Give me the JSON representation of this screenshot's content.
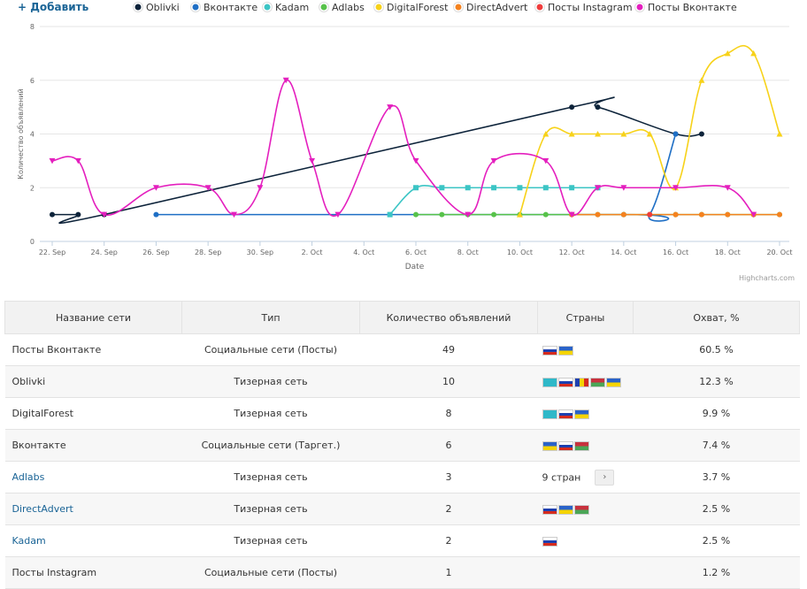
{
  "add_label": "+ Добавить",
  "credits": "Highcharts.com",
  "chart_data": {
    "type": "line",
    "xlabel": "Date",
    "ylabel": "Количество объявлений",
    "ylim": [
      0,
      8
    ],
    "yticks": [
      0,
      2,
      4,
      6,
      8
    ],
    "xlim": [
      "2014-09-22",
      "2014-10-20"
    ],
    "xticks": [
      "22. Sep",
      "24. Sep",
      "26. Sep",
      "28. Sep",
      "30. Sep",
      "2. Oct",
      "4. Oct",
      "6. Oct",
      "8. Oct",
      "10. Oct",
      "12. Oct",
      "14. Oct",
      "16. Oct",
      "18. Oct",
      "20. Oct"
    ],
    "legend_position": "top",
    "series": [
      {
        "name": "Oblivki",
        "color": "#0d233a",
        "marker": "circle",
        "points": [
          [
            "09-22",
            1
          ],
          [
            "09-23",
            1
          ],
          [
            "09-24",
            1
          ],
          [
            "10-12",
            5
          ],
          [
            "10-13",
            5
          ],
          [
            "10-16",
            4
          ],
          [
            "10-17",
            4
          ]
        ]
      },
      {
        "name": "Вконтакте",
        "color": "#1f6fc5",
        "marker": "circle",
        "points": [
          [
            "09-26",
            1
          ],
          [
            "10-14",
            1
          ],
          [
            "10-15",
            1
          ],
          [
            "10-16",
            4
          ]
        ]
      },
      {
        "name": "Kadam",
        "color": "#3cc5c5",
        "marker": "square",
        "points": [
          [
            "10-05",
            1
          ],
          [
            "10-06",
            2
          ],
          [
            "10-07",
            2
          ],
          [
            "10-08",
            2
          ],
          [
            "10-09",
            2
          ],
          [
            "10-10",
            2
          ],
          [
            "10-11",
            2
          ],
          [
            "10-12",
            2
          ],
          [
            "10-13",
            2
          ]
        ]
      },
      {
        "name": "Adlabs",
        "color": "#57c24a",
        "marker": "circle",
        "points": [
          [
            "10-06",
            1
          ],
          [
            "10-07",
            1
          ],
          [
            "10-08",
            1
          ],
          [
            "10-09",
            1
          ],
          [
            "10-10",
            1
          ],
          [
            "10-11",
            1
          ],
          [
            "10-12",
            1
          ],
          [
            "10-13",
            1
          ],
          [
            "10-14",
            1
          ],
          [
            "10-15",
            1
          ],
          [
            "10-16",
            1
          ],
          [
            "10-17",
            1
          ],
          [
            "10-18",
            1
          ],
          [
            "10-19",
            1
          ],
          [
            "10-20",
            1
          ]
        ]
      },
      {
        "name": "DigitalForest",
        "color": "#f7d21a",
        "marker": "triangle",
        "points": [
          [
            "10-10",
            1
          ],
          [
            "10-11",
            4
          ],
          [
            "10-12",
            4
          ],
          [
            "10-13",
            4
          ],
          [
            "10-14",
            4
          ],
          [
            "10-15",
            4
          ],
          [
            "10-16",
            2
          ],
          [
            "10-17",
            6
          ],
          [
            "10-18",
            7
          ],
          [
            "10-19",
            7
          ],
          [
            "10-20",
            4
          ]
        ]
      },
      {
        "name": "DirectAdvert",
        "color": "#f5821f",
        "marker": "circle",
        "points": [
          [
            "10-12",
            1
          ],
          [
            "10-13",
            1
          ],
          [
            "10-14",
            1
          ],
          [
            "10-15",
            1
          ],
          [
            "10-16",
            1
          ],
          [
            "10-17",
            1
          ],
          [
            "10-18",
            1
          ],
          [
            "10-19",
            1
          ],
          [
            "10-20",
            1
          ]
        ]
      },
      {
        "name": "Посты Instagram",
        "color": "#f03c3c",
        "marker": "circle",
        "points": [
          [
            "10-15",
            1
          ]
        ]
      },
      {
        "name": "Посты Вконтакте",
        "color": "#e41fbe",
        "marker": "triangle-down",
        "points": [
          [
            "09-22",
            3
          ],
          [
            "09-23",
            3
          ],
          [
            "09-24",
            1
          ],
          [
            "09-26",
            2
          ],
          [
            "09-28",
            2
          ],
          [
            "09-29",
            1
          ],
          [
            "09-30",
            2
          ],
          [
            "10-01",
            6
          ],
          [
            "10-02",
            3
          ],
          [
            "10-03",
            1
          ],
          [
            "10-05",
            5
          ],
          [
            "10-06",
            3
          ],
          [
            "10-08",
            1
          ],
          [
            "10-09",
            3
          ],
          [
            "10-11",
            3
          ],
          [
            "10-12",
            1
          ],
          [
            "10-13",
            2
          ],
          [
            "10-14",
            2
          ],
          [
            "10-16",
            2
          ],
          [
            "10-18",
            2
          ],
          [
            "10-19",
            1
          ]
        ]
      }
    ]
  },
  "table": {
    "headers": [
      "Название сети",
      "Тип",
      "Количество объявлений",
      "Страны",
      "Охват, %"
    ],
    "rows": [
      {
        "name": "Посты Вконтакте",
        "link": false,
        "type": "Социальные сети (Посты)",
        "count": "49",
        "flags": [
          "ru",
          "ua"
        ],
        "countries_text": "",
        "reach": "60.5 %"
      },
      {
        "name": "Oblivki",
        "link": false,
        "type": "Тизерная сеть",
        "count": "10",
        "flags": [
          "kz",
          "ru",
          "md",
          "by",
          "ua"
        ],
        "countries_text": "",
        "reach": "12.3 %"
      },
      {
        "name": "DigitalForest",
        "link": false,
        "type": "Тизерная сеть",
        "count": "8",
        "flags": [
          "kz",
          "ru",
          "ua"
        ],
        "countries_text": "",
        "reach": "9.9 %"
      },
      {
        "name": "Вконтакте",
        "link": false,
        "type": "Социальные сети (Таргет.)",
        "count": "6",
        "flags": [
          "ua",
          "ru",
          "by"
        ],
        "countries_text": "",
        "reach": "7.4 %"
      },
      {
        "name": "Adlabs",
        "link": true,
        "type": "Тизерная сеть",
        "count": "3",
        "flags": [],
        "countries_text": "9 стран",
        "reach": "3.7 %"
      },
      {
        "name": "DirectAdvert",
        "link": true,
        "type": "Тизерная сеть",
        "count": "2",
        "flags": [
          "ru",
          "ua",
          "by"
        ],
        "countries_text": "",
        "reach": "2.5 %"
      },
      {
        "name": "Kadam",
        "link": true,
        "type": "Тизерная сеть",
        "count": "2",
        "flags": [
          "ru"
        ],
        "countries_text": "",
        "reach": "2.5 %"
      },
      {
        "name": "Посты Instagram",
        "link": false,
        "type": "Социальные сети (Посты)",
        "count": "1",
        "flags": [],
        "countries_text": "",
        "reach": "1.2 %"
      }
    ]
  },
  "flag_colors": {
    "ru": [
      "#ffffff",
      "#1c3fb0",
      "#d52b1e"
    ],
    "ua": [
      "#2a63c9",
      "#f5d400"
    ],
    "kz": [
      "#2fb8c8"
    ],
    "md": [
      "#1d3fb0",
      "#f5d400",
      "#d52b1e"
    ],
    "by": [
      "#c8313e",
      "#4aa657"
    ]
  }
}
